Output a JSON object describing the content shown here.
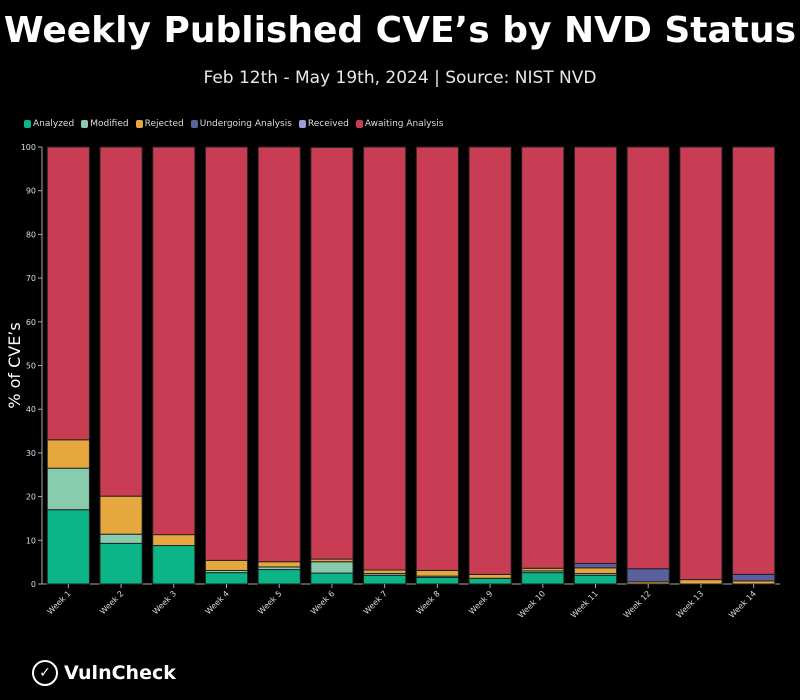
{
  "chart_data": {
    "type": "bar",
    "stacked": true,
    "title": "Weekly Published CVE’s by NVD Status",
    "subtitle": "Feb 12th - May 19th, 2024 | Source: NIST NVD",
    "xlabel": "",
    "ylabel": "% of CVE’s",
    "ylim": [
      0,
      100
    ],
    "yticks": [
      0,
      10,
      20,
      30,
      40,
      50,
      60,
      70,
      80,
      90,
      100
    ],
    "legend_position": "top-left",
    "grid": false,
    "categories": [
      "Week 1",
      "Week 2",
      "Week 3",
      "Week 4",
      "Week 5",
      "Week 6",
      "Week 7",
      "Week 8",
      "Week 9",
      "Week 10",
      "Week 11",
      "Week 12",
      "Week 13",
      "Week 14"
    ],
    "series": [
      {
        "name": "Analyzed",
        "color": "#0bb587",
        "values": [
          17,
          9.3,
          8.8,
          2.6,
          3.3,
          2.5,
          2.0,
          1.5,
          1.3,
          2.6,
          2.0,
          0,
          0,
          0
        ]
      },
      {
        "name": "Modified",
        "color": "#88cbad",
        "values": [
          9.5,
          2.1,
          0,
          0.5,
          0.6,
          2.6,
          0.4,
          0.3,
          0,
          0.4,
          0.4,
          0,
          0,
          0
        ]
      },
      {
        "name": "Rejected",
        "color": "#e6a83e",
        "values": [
          6.5,
          8.7,
          2.5,
          2.3,
          1.2,
          0.6,
          0.8,
          1.3,
          0.9,
          0.6,
          1.3,
          0.5,
          1.0,
          0.7
        ]
      },
      {
        "name": "Undergoing Analysis",
        "color": "#5a5f9e",
        "values": [
          0,
          0,
          0,
          0,
          0,
          0,
          0,
          0,
          0,
          0,
          1.0,
          3.0,
          0,
          1.5
        ]
      },
      {
        "name": "Received",
        "color": "#9b9ce0",
        "values": [
          0,
          0,
          0,
          0,
          0,
          0,
          0,
          0,
          0,
          0,
          0,
          0,
          0,
          0
        ]
      },
      {
        "name": "Awaiting Analysis",
        "color": "#c83c54",
        "values": [
          67,
          79.9,
          88.7,
          94.6,
          94.9,
          94.2,
          96.8,
          96.9,
          97.8,
          96.4,
          95.3,
          96.5,
          99,
          97.8
        ]
      }
    ]
  },
  "footer": {
    "logo_text": "VulnCheck"
  }
}
